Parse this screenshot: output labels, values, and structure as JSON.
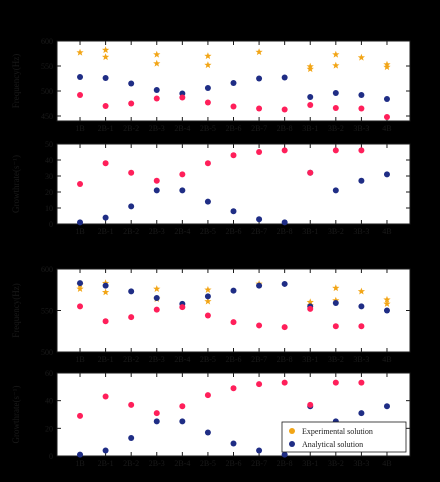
{
  "chart_data": [
    {
      "type": "scatter",
      "ylabel": "Frequency(Hz)",
      "ylim": [
        440,
        600
      ],
      "yticks": [
        450,
        500,
        550,
        600
      ],
      "categories": [
        "1B",
        "2B-1",
        "2B-2",
        "2B-3",
        "2B-4",
        "2B-5",
        "2B-6",
        "2B-7",
        "2B-8",
        "3B-1",
        "3B-2",
        "3B-3",
        "4B"
      ],
      "series": [
        {
          "name": "Experimental solution",
          "marker": "star",
          "color": "#f2a516",
          "points": [
            [
              0,
              577
            ],
            [
              1,
              582
            ],
            [
              1,
              568
            ],
            [
              3,
              573
            ],
            [
              3,
              555
            ],
            [
              5,
              570
            ],
            [
              5,
              552
            ],
            [
              7,
              578
            ],
            [
              9,
              549
            ],
            [
              9,
              544
            ],
            [
              10,
              573
            ],
            [
              10,
              551
            ],
            [
              11,
              567
            ],
            [
              12,
              553
            ],
            [
              12,
              548
            ]
          ]
        },
        {
          "name": "Analytical solution",
          "marker": "circle",
          "color": "#1f2d85",
          "points": [
            [
              0,
              528
            ],
            [
              1,
              526
            ],
            [
              2,
              515
            ],
            [
              3,
              502
            ],
            [
              4,
              495
            ],
            [
              5,
              506
            ],
            [
              6,
              516
            ],
            [
              7,
              525
            ],
            [
              8,
              527
            ],
            [
              9,
              488
            ],
            [
              10,
              496
            ],
            [
              11,
              492
            ],
            [
              12,
              484
            ]
          ]
        },
        {
          "name": "Analytical solution",
          "marker": "circle",
          "color": "#ff1f5a",
          "points": [
            [
              0,
              492
            ],
            [
              1,
              470
            ],
            [
              2,
              475
            ],
            [
              3,
              485
            ],
            [
              4,
              487
            ],
            [
              5,
              477
            ],
            [
              6,
              469
            ],
            [
              7,
              465
            ],
            [
              8,
              463
            ],
            [
              9,
              472
            ],
            [
              10,
              466
            ],
            [
              11,
              465
            ],
            [
              12,
              448
            ]
          ]
        }
      ]
    },
    {
      "type": "scatter",
      "ylabel": "Growthrate(s⁻¹)",
      "ylim": [
        0,
        50
      ],
      "yticks": [
        0,
        10,
        20,
        30,
        40,
        50
      ],
      "categories": [
        "1B",
        "2B-1",
        "2B-2",
        "2B-3",
        "2B-4",
        "2B-5",
        "2B-6",
        "2B-7",
        "2B-8",
        "3B-1",
        "3B-2",
        "3B-3",
        "4B"
      ],
      "series": [
        {
          "name": "Analytical solution",
          "marker": "circle",
          "color": "#1f2d85",
          "points": [
            [
              0,
              1
            ],
            [
              1,
              4
            ],
            [
              2,
              11
            ],
            [
              3,
              21
            ],
            [
              4,
              21
            ],
            [
              5,
              14
            ],
            [
              6,
              8
            ],
            [
              7,
              3
            ],
            [
              8,
              1
            ],
            [
              9,
              32
            ],
            [
              10,
              21
            ],
            [
              11,
              27
            ],
            [
              12,
              31
            ]
          ]
        },
        {
          "name": "Analytical solution",
          "marker": "circle",
          "color": "#ff1f5a",
          "points": [
            [
              0,
              25
            ],
            [
              1,
              38
            ],
            [
              2,
              32
            ],
            [
              3,
              27
            ],
            [
              4,
              31
            ],
            [
              5,
              38
            ],
            [
              6,
              43
            ],
            [
              7,
              45
            ],
            [
              8,
              46
            ],
            [
              9,
              32
            ],
            [
              10,
              46
            ],
            [
              11,
              46
            ]
          ]
        }
      ]
    },
    {
      "type": "scatter",
      "ylabel": "Frequency(Hz)",
      "ylim": [
        500,
        600
      ],
      "yticks": [
        500,
        550,
        600
      ],
      "categories": [
        "1B",
        "2B-1",
        "2B-2",
        "2B-3",
        "2B-4",
        "2B-5",
        "2B-6",
        "2B-7",
        "2B-8",
        "3B-1",
        "3B-2",
        "3B-3",
        "4B"
      ],
      "series": [
        {
          "name": "Experimental solution",
          "marker": "star",
          "color": "#f2a516",
          "points": [
            [
              0,
              581
            ],
            [
              0,
              576
            ],
            [
              1,
              583
            ],
            [
              1,
              572
            ],
            [
              3,
              576
            ],
            [
              3,
              564
            ],
            [
              5,
              575
            ],
            [
              5,
              561
            ],
            [
              7,
              582
            ],
            [
              9,
              560
            ],
            [
              9,
              556
            ],
            [
              10,
              577
            ],
            [
              10,
              562
            ],
            [
              11,
              573
            ],
            [
              12,
              563
            ],
            [
              12,
              558
            ]
          ]
        },
        {
          "name": "Analytical solution",
          "marker": "circle",
          "color": "#1f2d85",
          "points": [
            [
              0,
              583
            ],
            [
              1,
              580
            ],
            [
              2,
              573
            ],
            [
              3,
              565
            ],
            [
              4,
              558
            ],
            [
              5,
              567
            ],
            [
              6,
              574
            ],
            [
              7,
              580
            ],
            [
              8,
              582
            ],
            [
              9,
              555
            ],
            [
              10,
              559
            ],
            [
              11,
              555
            ],
            [
              12,
              550
            ]
          ]
        },
        {
          "name": "Analytical solution",
          "marker": "circle",
          "color": "#ff1f5a",
          "points": [
            [
              0,
              555
            ],
            [
              1,
              537
            ],
            [
              2,
              542
            ],
            [
              3,
              551
            ],
            [
              4,
              554
            ],
            [
              5,
              544
            ],
            [
              6,
              536
            ],
            [
              7,
              532
            ],
            [
              8,
              530
            ],
            [
              9,
              552
            ],
            [
              10,
              531
            ],
            [
              11,
              531
            ]
          ]
        }
      ]
    },
    {
      "type": "scatter",
      "ylabel": "Growthrate(s⁻¹)",
      "ylim": [
        0,
        60
      ],
      "yticks": [
        0,
        20,
        40,
        60
      ],
      "categories": [
        "1B",
        "2B-1",
        "2B-2",
        "2B-3",
        "2B-4",
        "2B-5",
        "2B-6",
        "2B-7",
        "2B-8",
        "3B-1",
        "3B-2",
        "3B-3",
        "4B"
      ],
      "legend": {
        "position": "bottom-right",
        "entries": [
          "Experimental solution",
          "Analytical solution"
        ]
      },
      "series": [
        {
          "name": "Analytical solution",
          "marker": "circle",
          "color": "#1f2d85",
          "points": [
            [
              0,
              1
            ],
            [
              1,
              4
            ],
            [
              2,
              13
            ],
            [
              3,
              25
            ],
            [
              4,
              25
            ],
            [
              5,
              17
            ],
            [
              6,
              9
            ],
            [
              7,
              4
            ],
            [
              8,
              1
            ],
            [
              9,
              36
            ],
            [
              10,
              25
            ],
            [
              11,
              31
            ],
            [
              12,
              36
            ]
          ]
        },
        {
          "name": "Analytical solution",
          "marker": "circle",
          "color": "#ff1f5a",
          "points": [
            [
              0,
              29
            ],
            [
              1,
              43
            ],
            [
              2,
              37
            ],
            [
              3,
              31
            ],
            [
              4,
              36
            ],
            [
              5,
              44
            ],
            [
              6,
              49
            ],
            [
              7,
              52
            ],
            [
              8,
              53
            ],
            [
              9,
              37
            ],
            [
              10,
              53
            ],
            [
              11,
              53
            ]
          ]
        }
      ]
    }
  ]
}
